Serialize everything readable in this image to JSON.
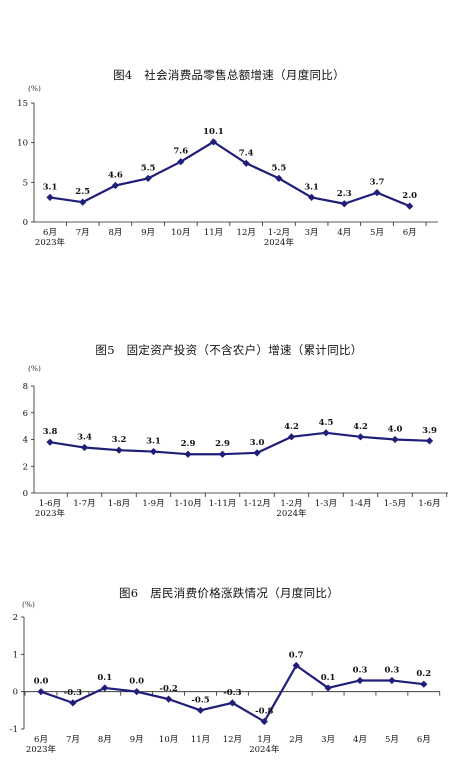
{
  "charts": [
    {
      "title": "图4　社会消费品零售总额增速（月度同比）",
      "unit": "(%)",
      "color": "#1f1f7a",
      "chart_data": {
        "type": "line",
        "categories": [
          "6月",
          "7月",
          "8月",
          "9月",
          "10月",
          "11月",
          "12月",
          "1-2月",
          "3月",
          "4月",
          "5月",
          "6月"
        ],
        "year_labels": [
          {
            "index": 0,
            "text": "2023年"
          },
          {
            "index": 7,
            "text": "2024年"
          }
        ],
        "values": [
          3.1,
          2.5,
          4.6,
          5.5,
          7.6,
          10.1,
          7.4,
          5.5,
          3.1,
          2.3,
          3.7,
          2.0
        ],
        "data_labels": [
          "3.1",
          "2.5",
          "4.6",
          "5.5",
          "7.6",
          "10.1",
          "7.4",
          "5.5",
          "3.1",
          "2.3",
          "3.7",
          "2.0"
        ],
        "yticks": [
          "0",
          "5",
          "10",
          "15"
        ],
        "ylim": [
          0,
          15
        ],
        "grid": false
      }
    },
    {
      "title": "图5　固定资产投资（不含农户）增速（累计同比）",
      "unit": "(%)",
      "color": "#1f1f7a",
      "chart_data": {
        "type": "line",
        "categories": [
          "1-6月",
          "1-7月",
          "1-8月",
          "1-9月",
          "1-10月",
          "1-11月",
          "1-12月",
          "1-2月",
          "1-3月",
          "1-4月",
          "1-5月",
          "1-6月"
        ],
        "year_labels": [
          {
            "index": 0,
            "text": "2023年"
          },
          {
            "index": 7,
            "text": "2024年"
          }
        ],
        "values": [
          3.8,
          3.4,
          3.2,
          3.1,
          2.9,
          2.9,
          3.0,
          4.2,
          4.5,
          4.2,
          4.0,
          3.9
        ],
        "data_labels": [
          "3.8",
          "3.4",
          "3.2",
          "3.1",
          "2.9",
          "2.9",
          "3.0",
          "4.2",
          "4.5",
          "4.2",
          "4.0",
          "3.9"
        ],
        "yticks": [
          "0",
          "2",
          "4",
          "6",
          "8"
        ],
        "ylim": [
          0,
          8
        ],
        "grid": false
      }
    },
    {
      "title": "图6　居民消费价格涨跌情况（月度同比）",
      "unit": "(%)",
      "color": "#1f1f7a",
      "chart_data": {
        "type": "line",
        "categories": [
          "6月",
          "7月",
          "8月",
          "9月",
          "10月",
          "11月",
          "12月",
          "1月",
          "2月",
          "3月",
          "4月",
          "5月",
          "6月"
        ],
        "year_labels": [
          {
            "index": 0,
            "text": "2023年"
          },
          {
            "index": 7,
            "text": "2024年"
          }
        ],
        "values": [
          0.0,
          -0.3,
          0.1,
          0.0,
          -0.2,
          -0.5,
          -0.3,
          -0.8,
          0.7,
          0.1,
          0.3,
          0.3,
          0.2
        ],
        "data_labels": [
          "0.0",
          "-0.3",
          "0.1",
          "0.0",
          "-0.2",
          "-0.5",
          "-0.3",
          "-0.8",
          "0.7",
          "0.1",
          "0.3",
          "0.3",
          "0.2"
        ],
        "yticks": [
          "-1",
          "0",
          "1",
          "2"
        ],
        "ylim": [
          -1,
          2
        ],
        "grid": false
      }
    }
  ]
}
